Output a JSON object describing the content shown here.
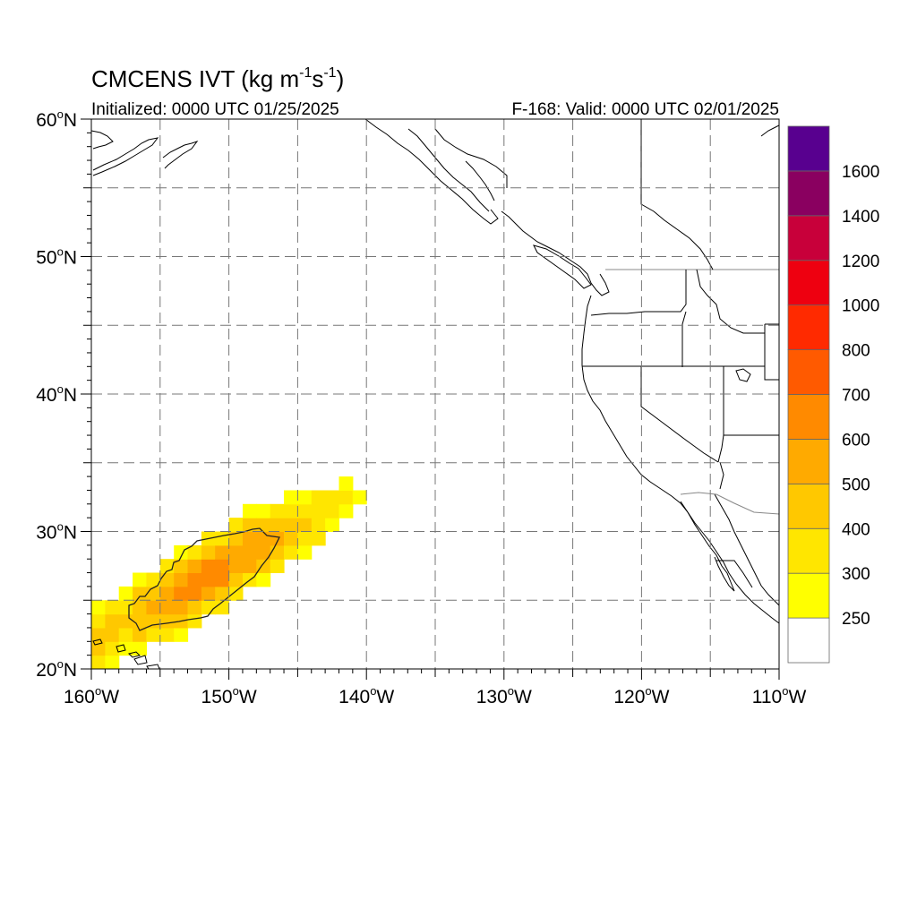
{
  "header": {
    "title_prefix": "CMCENS IVT (kg m",
    "title_exp1": "-1",
    "title_mid": "s",
    "title_exp2": "-1",
    "title_suffix": ")",
    "initialized": "Initialized: 0000 UTC 01/25/2025",
    "valid": "F-168: Valid: 0000 UTC 02/01/2025"
  },
  "axes": {
    "lon_range": [
      -160,
      -110
    ],
    "lat_range": [
      20,
      60
    ],
    "lon_labels": [
      {
        "value": -160,
        "num": "160",
        "deg": "o",
        "hem": "W"
      },
      {
        "value": -150,
        "num": "150",
        "deg": "o",
        "hem": "W"
      },
      {
        "value": -140,
        "num": "140",
        "deg": "o",
        "hem": "W"
      },
      {
        "value": -130,
        "num": "130",
        "deg": "o",
        "hem": "W"
      },
      {
        "value": -120,
        "num": "120",
        "deg": "o",
        "hem": "W"
      },
      {
        "value": -110,
        "num": "110",
        "deg": "o",
        "hem": "W"
      }
    ],
    "lat_labels": [
      {
        "value": 60,
        "num": "60",
        "deg": "o",
        "hem": "N"
      },
      {
        "value": 50,
        "num": "50",
        "deg": "o",
        "hem": "N"
      },
      {
        "value": 40,
        "num": "40",
        "deg": "o",
        "hem": "N"
      },
      {
        "value": 30,
        "num": "30",
        "deg": "o",
        "hem": "N"
      },
      {
        "value": 20,
        "num": "20",
        "deg": "o",
        "hem": "N"
      }
    ],
    "grid_lon_step": 5,
    "grid_lat_step": 5,
    "grid_style": "dashed"
  },
  "colorbar": {
    "levels": [
      {
        "color": "#ffffff",
        "label": "250"
      },
      {
        "color": "#ffff00",
        "label": "300"
      },
      {
        "color": "#ffe600",
        "label": "400"
      },
      {
        "color": "#ffc800",
        "label": "500"
      },
      {
        "color": "#ffaa00",
        "label": "600"
      },
      {
        "color": "#ff8a00",
        "label": "700"
      },
      {
        "color": "#ff5a00",
        "label": "800"
      },
      {
        "color": "#ff2a00",
        "label": "1000"
      },
      {
        "color": "#ee0010",
        "label": "1200"
      },
      {
        "color": "#c8003a",
        "label": "1400"
      },
      {
        "color": "#8a0060",
        "label": "1600"
      },
      {
        "color": "#58008f",
        "label": ""
      }
    ]
  },
  "ivt_field": {
    "description_units": "kg m-1 s-1",
    "centers": [
      {
        "lon": -155.5,
        "lat": 24.5,
        "value": 540
      },
      {
        "lon": -153,
        "lat": 25.8,
        "value": 640
      },
      {
        "lon": -151,
        "lat": 27.0,
        "value": 650
      },
      {
        "lon": -149,
        "lat": 28.3,
        "value": 590
      },
      {
        "lon": -147,
        "lat": 29.3,
        "value": 520
      },
      {
        "lon": -144.5,
        "lat": 30.5,
        "value": 410
      },
      {
        "lon": -142.5,
        "lat": 31.8,
        "value": 320
      },
      {
        "lon": -159,
        "lat": 22.5,
        "value": 430
      }
    ]
  }
}
